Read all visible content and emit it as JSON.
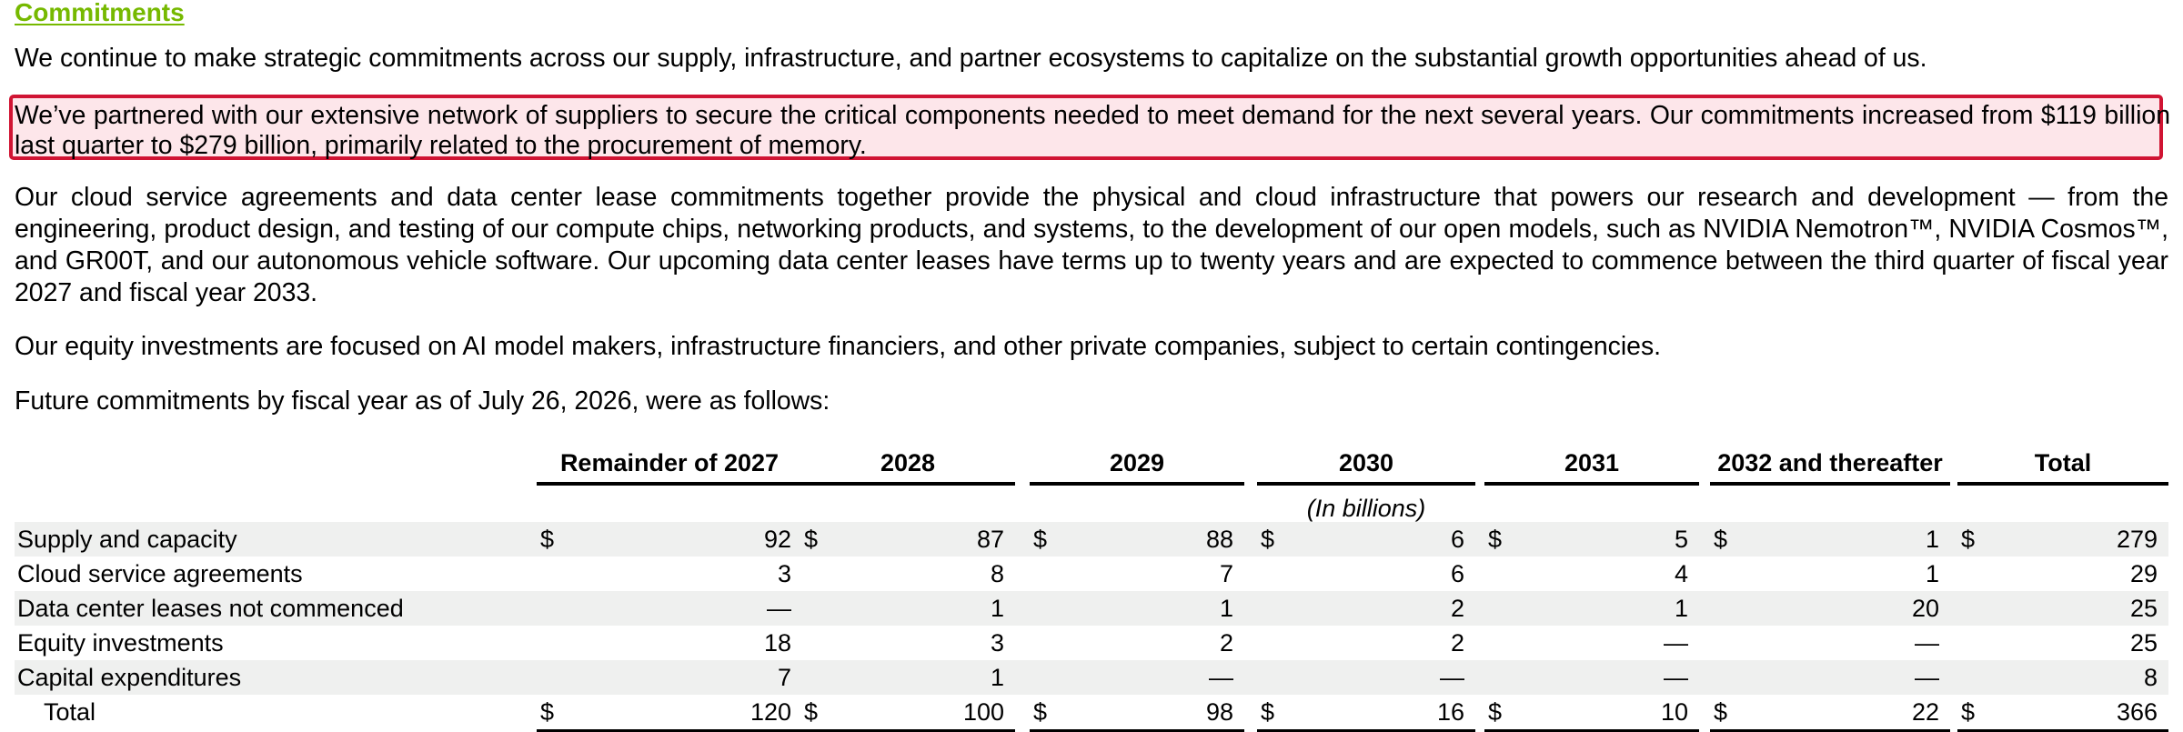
{
  "section": {
    "heading": "Commitments"
  },
  "paragraphs": {
    "intro": "We continue to make strategic commitments across our supply, infrastructure, and partner ecosystems to capitalize on the substantial growth opportunities ahead of us.",
    "highlighted": "We’ve partnered with our extensive network of suppliers to secure the critical components needed to meet demand for the next several years. Our commitments increased from $119 billion last quarter to $279 billion, primarily related to the procurement of memory.",
    "cloud": "Our cloud service agreements and data center lease commitments together provide the physical and cloud infrastructure that powers our research and development — from the engineering, product design, and testing of our compute chips, networking products, and systems, to the development of our open models, such as NVIDIA Nemotron™, NVIDIA Cosmos™, and GR00T, and our autonomous vehicle software. Our upcoming data center leases have terms up to twenty years and are expected to commence between the third quarter of fiscal year 2027 and fiscal year 2033.",
    "equity": "Our equity investments are focused on AI model makers, infrastructure financiers, and other private companies, subject to certain contingencies.",
    "table_intro": "Future commitments by fiscal year as of July 26, 2026, were as follows:"
  },
  "colors": {
    "heading": "#76b900",
    "highlight_border": "#d01433",
    "highlight_fill": "#fde6ea",
    "row_shade": "#eff0ef"
  },
  "table": {
    "columns": [
      "Remainder of 2027",
      "2028",
      "2029",
      "2030",
      "2031",
      "2032 and thereafter",
      "Total"
    ],
    "unit_caption": "(In billions)",
    "currency_symbol": "$",
    "rows": [
      {
        "label": "Supply and capacity",
        "values": [
          "92",
          "87",
          "88",
          "6",
          "5",
          "1",
          "279"
        ]
      },
      {
        "label": "Cloud service agreements",
        "values": [
          "3",
          "8",
          "7",
          "6",
          "4",
          "1",
          "29"
        ]
      },
      {
        "label": "Data center leases not commenced",
        "values": [
          "—",
          "1",
          "1",
          "2",
          "1",
          "20",
          "25"
        ]
      },
      {
        "label": "Equity investments",
        "values": [
          "18",
          "3",
          "2",
          "2",
          "—",
          "—",
          "25"
        ]
      },
      {
        "label": "Capital expenditures",
        "values": [
          "7",
          "1",
          "—",
          "—",
          "—",
          "—",
          "8"
        ]
      },
      {
        "label": "Total",
        "values": [
          "120",
          "100",
          "98",
          "16",
          "10",
          "22",
          "366"
        ]
      }
    ]
  }
}
